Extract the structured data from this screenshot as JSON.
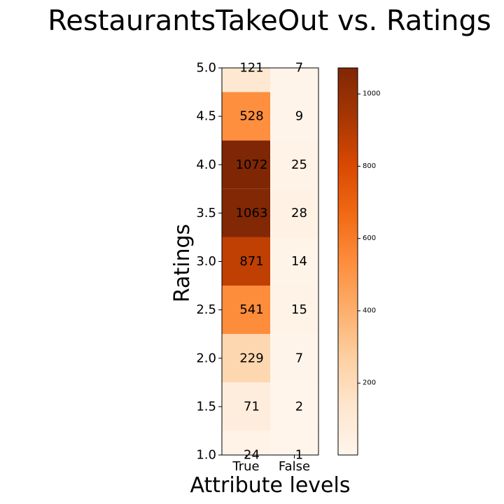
{
  "chart_data": {
    "type": "heatmap",
    "title": "RestaurantsTakeOut vs. Ratings",
    "xlabel": "Attribute levels",
    "ylabel": "Ratings",
    "x_categories": [
      "True",
      "False"
    ],
    "y_ticks": [
      "1.0",
      "1.5",
      "2.0",
      "2.5",
      "3.0",
      "3.5",
      "4.0",
      "4.5",
      "5.0"
    ],
    "y_range": [
      1.0,
      5.0
    ],
    "rows": [
      {
        "rating": 5.0,
        "values": [
          121,
          7
        ]
      },
      {
        "rating": 4.5,
        "values": [
          528,
          9
        ]
      },
      {
        "rating": 4.0,
        "values": [
          1072,
          25
        ]
      },
      {
        "rating": 3.5,
        "values": [
          1063,
          28
        ]
      },
      {
        "rating": 3.0,
        "values": [
          871,
          14
        ]
      },
      {
        "rating": 2.5,
        "values": [
          541,
          15
        ]
      },
      {
        "rating": 2.0,
        "values": [
          229,
          7
        ]
      },
      {
        "rating": 1.5,
        "values": [
          71,
          2
        ]
      },
      {
        "rating": 1.0,
        "values": [
          24,
          1
        ]
      }
    ],
    "colormap": "Oranges",
    "color_range": [
      1,
      1072
    ],
    "colorbar_ticks": [
      200,
      400,
      600,
      800,
      1000
    ],
    "grid": false
  }
}
